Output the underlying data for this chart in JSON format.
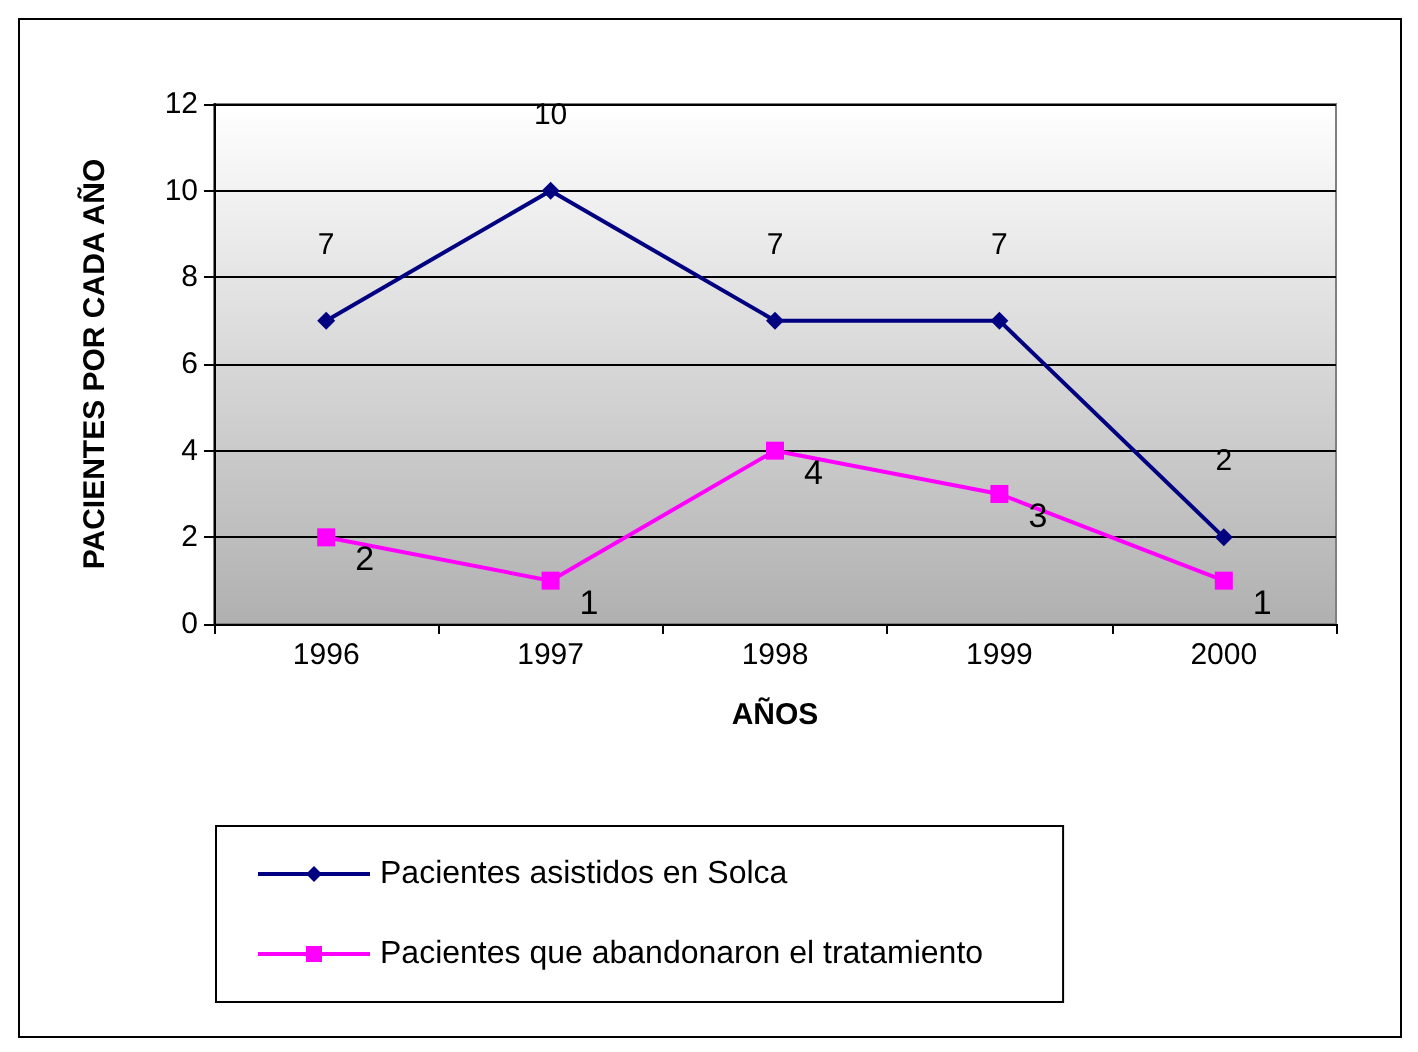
{
  "chart_data": {
    "type": "line",
    "xlabel": "AÑOS",
    "ylabel": "PACIENTES POR CADA AÑO",
    "categories": [
      "1996",
      "1997",
      "1998",
      "1999",
      "2000"
    ],
    "series": [
      {
        "name": "Pacientes asistidos en Solca",
        "color": "#000080",
        "marker": "diamond",
        "values": [
          7,
          10,
          7,
          7,
          2
        ]
      },
      {
        "name": "Pacientes que abandonaron el tratamiento",
        "color": "#ff00ff",
        "marker": "square",
        "values": [
          2,
          1,
          4,
          3,
          1
        ]
      }
    ],
    "ylim": [
      0,
      12
    ],
    "yticks": [
      0,
      2,
      4,
      6,
      8,
      10,
      12
    ],
    "grid": "y",
    "legend": "bottom",
    "data_labels": true,
    "line_style": "solid"
  }
}
